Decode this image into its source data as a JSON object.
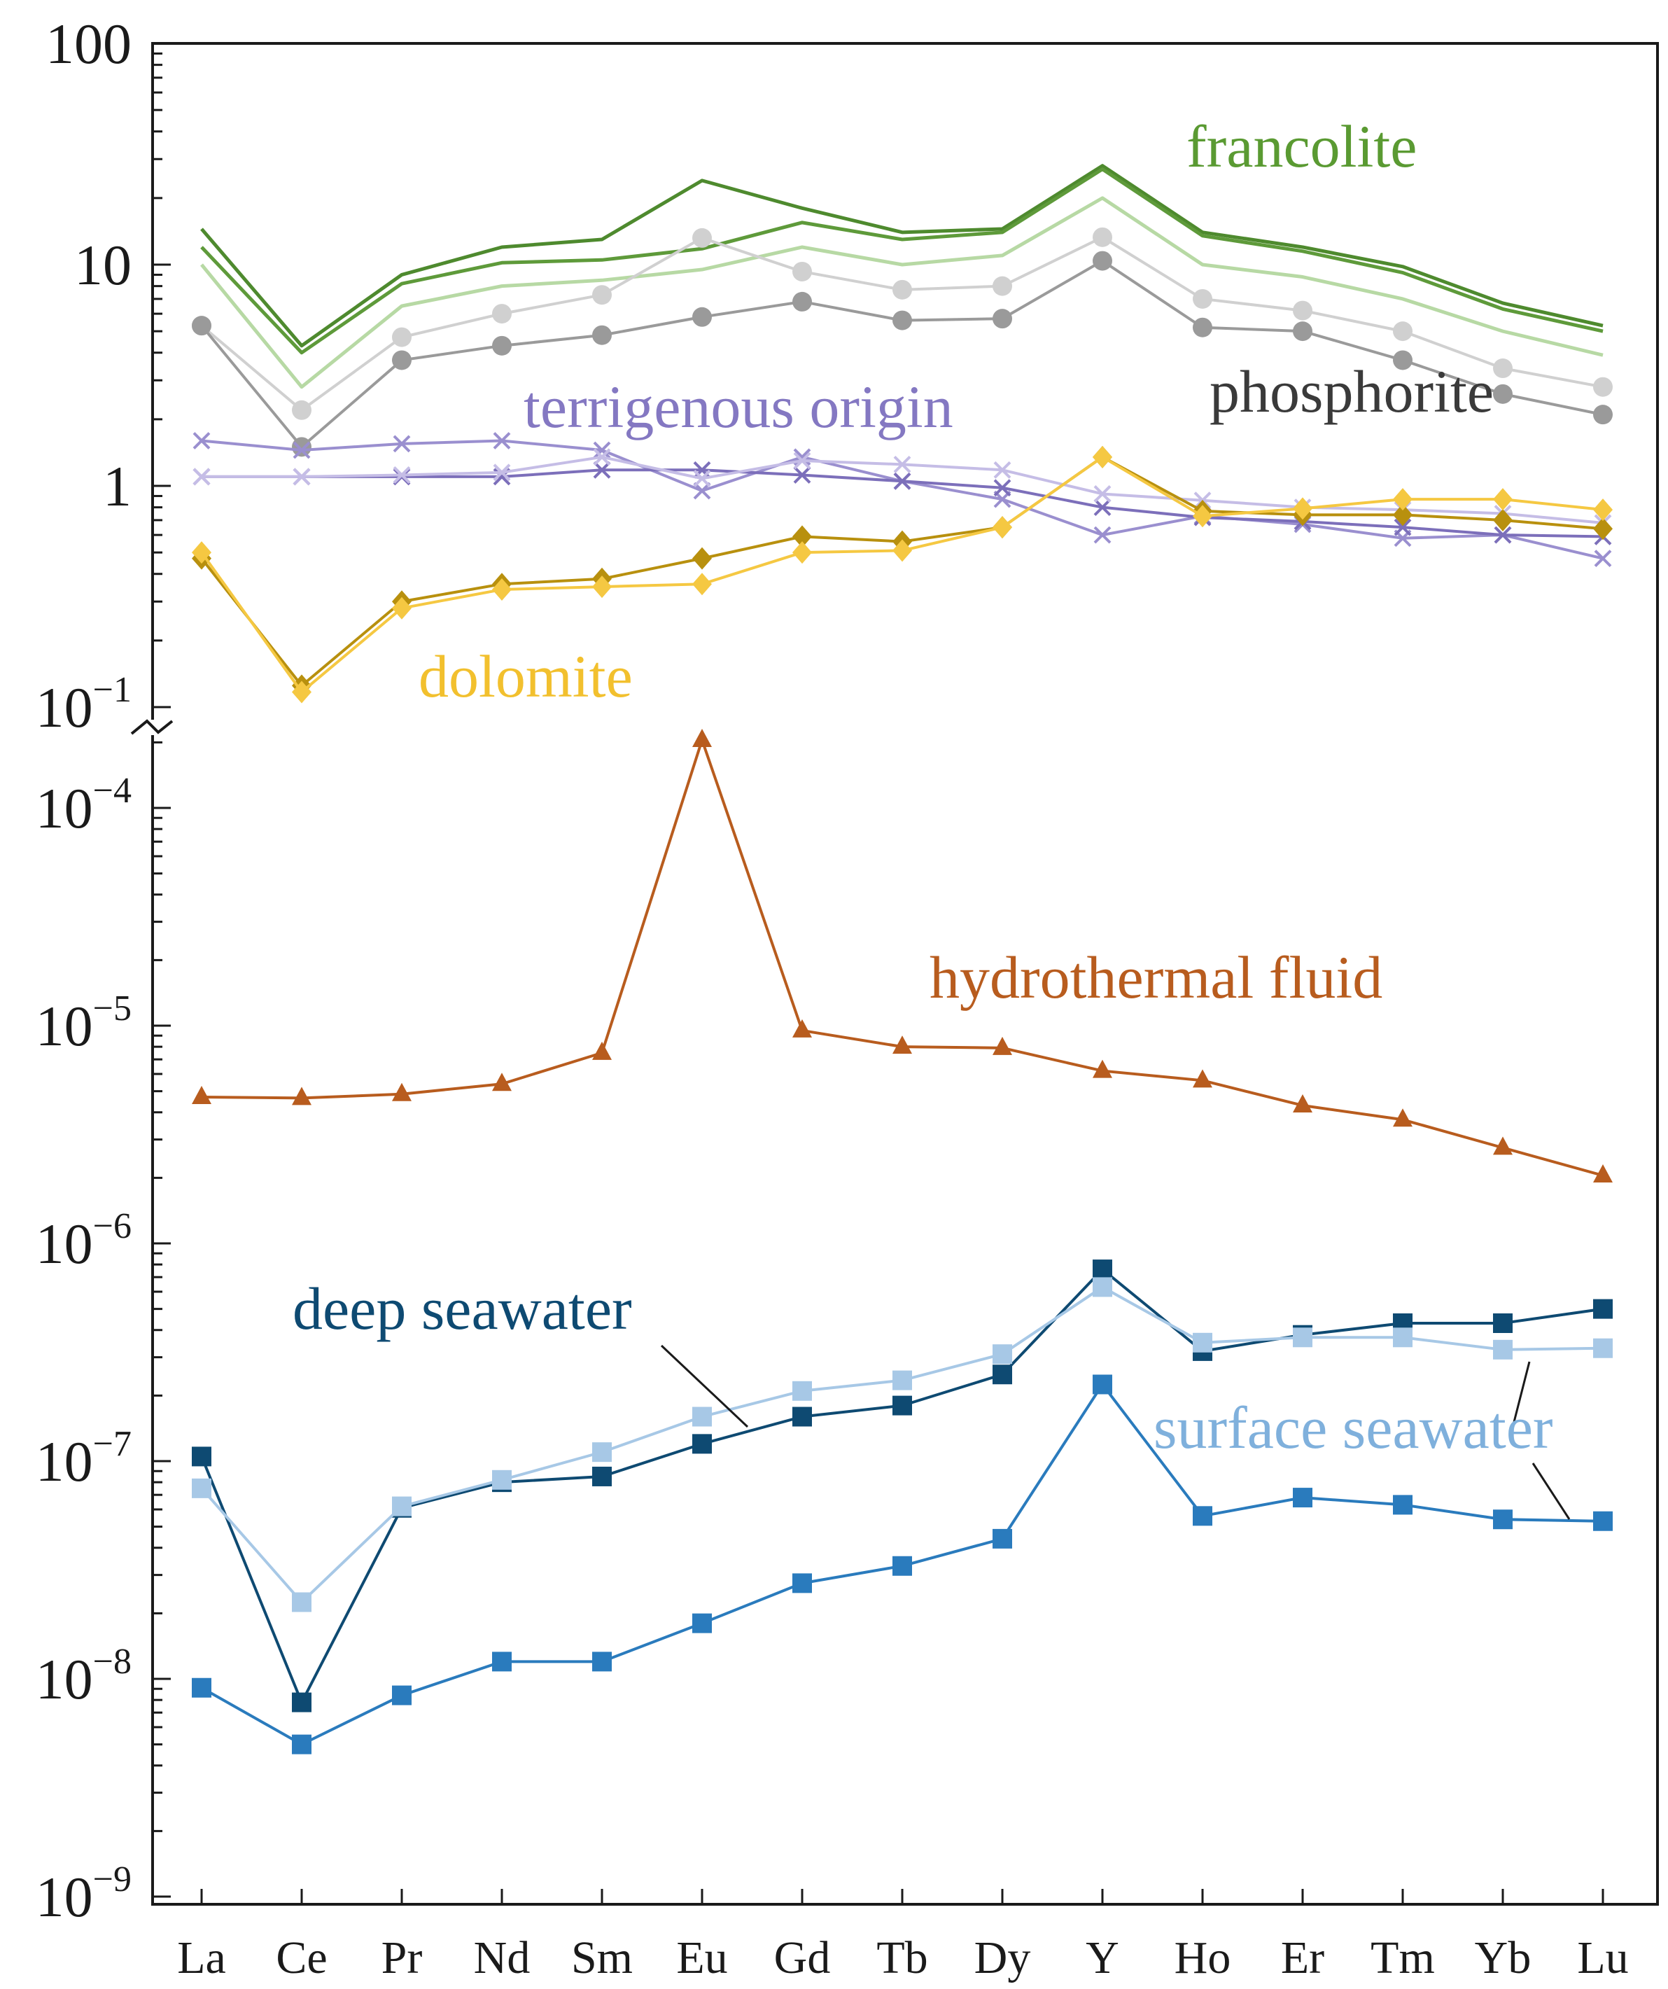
{
  "chart_data": {
    "type": "line",
    "title": "",
    "xlabel": "",
    "ylabel": "",
    "yscale": "log (broken axis)",
    "categories": [
      "La",
      "Ce",
      "Pr",
      "Nd",
      "Sm",
      "Eu",
      "Gd",
      "Tb",
      "Dy",
      "Y",
      "Ho",
      "Er",
      "Tm",
      "Yb",
      "Lu"
    ],
    "upper_ylim": [
      0.1,
      100
    ],
    "lower_ylim": [
      1e-09,
      0.0002
    ],
    "upper_ticks": [
      {
        "value": 100,
        "base": "100",
        "exp": ""
      },
      {
        "value": 10,
        "base": "10",
        "exp": ""
      },
      {
        "value": 1,
        "base": "1",
        "exp": ""
      },
      {
        "value": 0.1,
        "base": "10",
        "exp": "−1"
      }
    ],
    "lower_ticks": [
      {
        "value": 0.0001,
        "base": "10",
        "exp": "−4"
      },
      {
        "value": 1e-05,
        "base": "10",
        "exp": "−5"
      },
      {
        "value": 1e-06,
        "base": "10",
        "exp": "−6"
      },
      {
        "value": 1e-07,
        "base": "10",
        "exp": "−7"
      },
      {
        "value": 1e-08,
        "base": "10",
        "exp": "−8"
      },
      {
        "value": 1e-09,
        "base": "10",
        "exp": "−9"
      }
    ],
    "labels": {
      "francolite": "francolite",
      "phosphorite": "phosphorite",
      "terrigenous": "terrigenous origin",
      "dolomite": "dolomite",
      "hydrothermal": "hydrothermal fluid",
      "deep": "deep seawater",
      "surface": "surface seawater"
    },
    "series": [
      {
        "name": "francolite 1",
        "group": "francolite",
        "panel": "upper",
        "color": "#4e8a2e",
        "marker": "none",
        "values": [
          14.5,
          4.3,
          9.0,
          12.0,
          13.0,
          24.0,
          18.0,
          14.0,
          14.5,
          28.0,
          14.0,
          12.0,
          9.8,
          6.7,
          5.3
        ]
      },
      {
        "name": "francolite 2",
        "group": "francolite",
        "panel": "upper",
        "color": "#5e9a3a",
        "marker": "none",
        "values": [
          12.0,
          4.0,
          8.2,
          10.2,
          10.5,
          11.8,
          15.5,
          13.0,
          14.0,
          27.0,
          13.5,
          11.5,
          9.2,
          6.3,
          5.0
        ]
      },
      {
        "name": "francolite 3",
        "group": "francolite",
        "panel": "upper",
        "color": "#b7d9a4",
        "marker": "none",
        "values": [
          10.0,
          2.8,
          6.5,
          8.0,
          8.5,
          9.5,
          12.0,
          10.0,
          11.0,
          20.0,
          10.0,
          8.8,
          7.0,
          5.0,
          3.9
        ]
      },
      {
        "name": "phosphorite 1",
        "group": "phosphorite",
        "panel": "upper",
        "color": "#d0d0d0",
        "marker": "circle",
        "values": [
          5.3,
          2.2,
          4.7,
          6.0,
          7.3,
          13.2,
          9.3,
          7.7,
          8.0,
          13.3,
          7.0,
          6.2,
          5.0,
          3.4,
          2.8
        ]
      },
      {
        "name": "phosphorite 2",
        "group": "phosphorite",
        "panel": "upper",
        "color": "#9a9a9a",
        "marker": "circle",
        "values": [
          5.3,
          1.5,
          3.7,
          4.3,
          4.8,
          5.8,
          6.8,
          5.6,
          5.7,
          10.4,
          5.2,
          5.0,
          3.7,
          2.6,
          2.1
        ]
      },
      {
        "name": "terrigenous 1",
        "group": "terrigenous",
        "panel": "upper",
        "color": "#9a8fcf",
        "marker": "x",
        "values": [
          1.6,
          1.45,
          1.55,
          1.6,
          1.45,
          0.95,
          1.35,
          1.05,
          0.87,
          0.6,
          0.73,
          0.67,
          0.58,
          0.6,
          0.47
        ]
      },
      {
        "name": "terrigenous 2",
        "group": "terrigenous",
        "panel": "upper",
        "color": "#7c6fba",
        "marker": "x",
        "values": [
          1.1,
          1.1,
          1.1,
          1.1,
          1.18,
          1.18,
          1.12,
          1.05,
          0.98,
          0.8,
          0.72,
          0.69,
          0.65,
          0.6,
          0.59
        ]
      },
      {
        "name": "terrigenous 3",
        "group": "terrigenous",
        "panel": "upper",
        "color": "#c5bde6",
        "marker": "x",
        "values": [
          1.1,
          1.1,
          1.12,
          1.15,
          1.35,
          1.08,
          1.3,
          1.25,
          1.18,
          0.92,
          0.86,
          0.8,
          0.78,
          0.75,
          0.68
        ]
      },
      {
        "name": "dolomite 1",
        "group": "dolomite",
        "panel": "upper",
        "color": "#b8900e",
        "marker": "diamond",
        "values": [
          0.47,
          0.125,
          0.3,
          0.36,
          0.38,
          0.47,
          0.59,
          0.56,
          0.65,
          1.35,
          0.77,
          0.74,
          0.74,
          0.7,
          0.64
        ]
      },
      {
        "name": "dolomite 2",
        "group": "dolomite",
        "panel": "upper",
        "color": "#f5c842",
        "marker": "diamond",
        "values": [
          0.5,
          0.117,
          0.28,
          0.34,
          0.35,
          0.36,
          0.5,
          0.51,
          0.65,
          1.35,
          0.73,
          0.79,
          0.87,
          0.87,
          0.78
        ]
      },
      {
        "name": "hydrothermal fluid",
        "group": "hydrothermal",
        "panel": "lower",
        "color": "#b85c1e",
        "marker": "triangle",
        "values": [
          4.7e-06,
          4.65e-06,
          4.85e-06,
          5.4e-06,
          7.5e-06,
          0.000205,
          9.5e-06,
          8e-06,
          7.9e-06,
          6.2e-06,
          5.6e-06,
          4.3e-06,
          3.7e-06,
          2.75e-06,
          2.05e-06
        ]
      },
      {
        "name": "deep seawater",
        "group": "deep",
        "panel": "lower",
        "color": "#0e4a72",
        "marker": "square",
        "values": [
          1.05e-07,
          7.8e-09,
          6.1e-08,
          8e-08,
          8.5e-08,
          1.2e-07,
          1.6e-07,
          1.8e-07,
          2.5e-07,
          7.6e-07,
          3.2e-07,
          3.8e-07,
          4.3e-07,
          4.3e-07,
          5e-07
        ]
      },
      {
        "name": "surface seawater 1",
        "group": "surface",
        "panel": "lower",
        "color": "#a7c8e6",
        "marker": "square",
        "values": [
          7.5e-08,
          2.25e-08,
          6.2e-08,
          8.2e-08,
          1.1e-07,
          1.6e-07,
          2.1e-07,
          2.35e-07,
          3.1e-07,
          6.3e-07,
          3.5e-07,
          3.7e-07,
          3.7e-07,
          3.25e-07,
          3.3e-07
        ]
      },
      {
        "name": "surface seawater 2",
        "group": "surface",
        "panel": "lower",
        "color": "#2a7bbd",
        "marker": "square",
        "values": [
          9.1e-09,
          5e-09,
          8.4e-09,
          1.2e-08,
          1.2e-08,
          1.8e-08,
          2.75e-08,
          3.3e-08,
          4.4e-08,
          2.25e-07,
          5.6e-08,
          6.8e-08,
          6.3e-08,
          5.4e-08,
          5.3e-08
        ]
      }
    ]
  }
}
